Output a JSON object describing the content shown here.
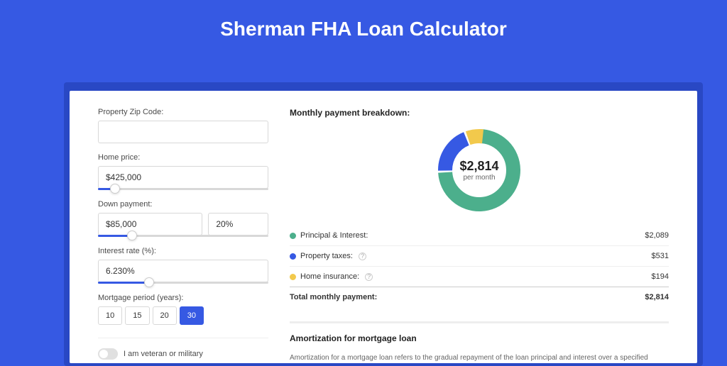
{
  "page": {
    "title": "Sherman FHA Loan Calculator",
    "background_color": "#3659E3"
  },
  "form": {
    "zip": {
      "label": "Property Zip Code:",
      "value": ""
    },
    "home_price": {
      "label": "Home price:",
      "value": "$425,000",
      "slider_pct": 10
    },
    "down_payment": {
      "label": "Down payment:",
      "amount": "$85,000",
      "pct": "20%",
      "slider_pct": 20
    },
    "interest": {
      "label": "Interest rate (%):",
      "value": "6.230%",
      "slider_pct": 30
    },
    "period": {
      "label": "Mortgage period (years):",
      "options": [
        "10",
        "15",
        "20",
        "30"
      ],
      "active": "30"
    },
    "veteran": {
      "label": "I am veteran or military",
      "checked": false
    }
  },
  "breakdown": {
    "title": "Monthly payment breakdown:",
    "center_value": "$2,814",
    "center_unit": "per month",
    "items": [
      {
        "label": "Principal & Interest:",
        "value": "$2,089",
        "color": "#4CAF8C",
        "pct": 74,
        "info": false
      },
      {
        "label": "Property taxes:",
        "value": "$531",
        "color": "#3659E3",
        "pct": 19,
        "info": true
      },
      {
        "label": "Home insurance:",
        "value": "$194",
        "color": "#F2C94C",
        "pct": 7,
        "info": true
      }
    ],
    "total": {
      "label": "Total monthly payment:",
      "value": "$2,814"
    }
  },
  "amortization": {
    "title": "Amortization for mortgage loan",
    "body": "Amortization for a mortgage loan refers to the gradual repayment of the loan principal and interest over a specified"
  },
  "chart": {
    "type": "donut",
    "size": 120,
    "stroke_width": 20,
    "background_color": "#ffffff"
  }
}
